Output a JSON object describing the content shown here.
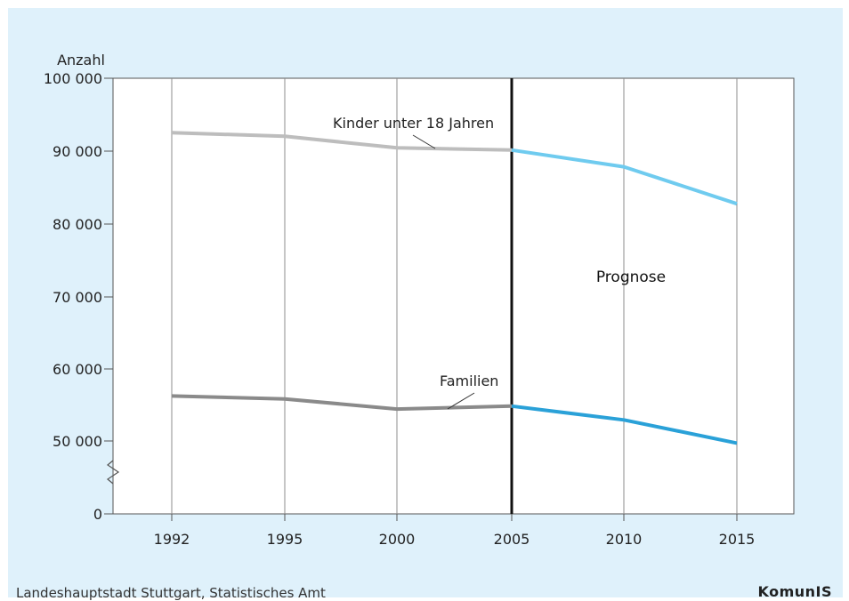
{
  "chart_data": {
    "type": "line",
    "ylabel": "Anzahl",
    "xlabel": "",
    "x": [
      "1992",
      "1995",
      "2000",
      "2005",
      "2010",
      "2015"
    ],
    "y_ticks": [
      "0",
      "50 000",
      "60 000",
      "70 000",
      "80 000",
      "90 000",
      "100 000"
    ],
    "ylim": [
      0,
      100000
    ],
    "y_axis_break": true,
    "forecast_from": "2005",
    "forecast_label": "Prognose",
    "series": [
      {
        "name": "Kinder unter 18 Jahren",
        "values": [
          92500,
          92000,
          90400,
          90100,
          87800,
          82700
        ],
        "color_observed": "#bdbdbd",
        "color_forecast": "#6fcbef"
      },
      {
        "name": "Familien",
        "values": [
          56200,
          55800,
          54400,
          54800,
          52900,
          49700
        ],
        "color_observed": "#8a8a8a",
        "color_forecast": "#2aa1d8"
      }
    ]
  },
  "footer": {
    "source": "Landeshauptstadt Stuttgart, Statistisches Amt",
    "logo": "KomunIS"
  }
}
